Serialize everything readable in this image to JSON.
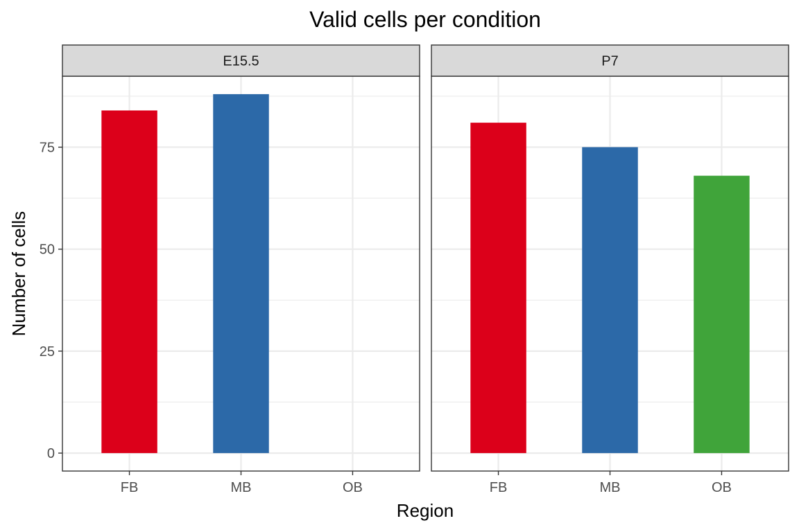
{
  "chart_data": {
    "type": "bar",
    "title": "Valid cells per condition",
    "xlabel": "Region",
    "ylabel": "Number of cells",
    "categories": [
      "FB",
      "MB",
      "OB"
    ],
    "ylim": [
      -4.4,
      92.4
    ],
    "yticks": [
      0,
      25,
      50,
      75
    ],
    "grid": true,
    "legend": "none",
    "colors": {
      "FB": "#DC001A",
      "MB": "#2C69A8",
      "OB": "#40A43A"
    },
    "facets": [
      {
        "label": "E15.5",
        "values": [
          84,
          88,
          null
        ]
      },
      {
        "label": "P7",
        "values": [
          81,
          75,
          68
        ]
      }
    ]
  }
}
